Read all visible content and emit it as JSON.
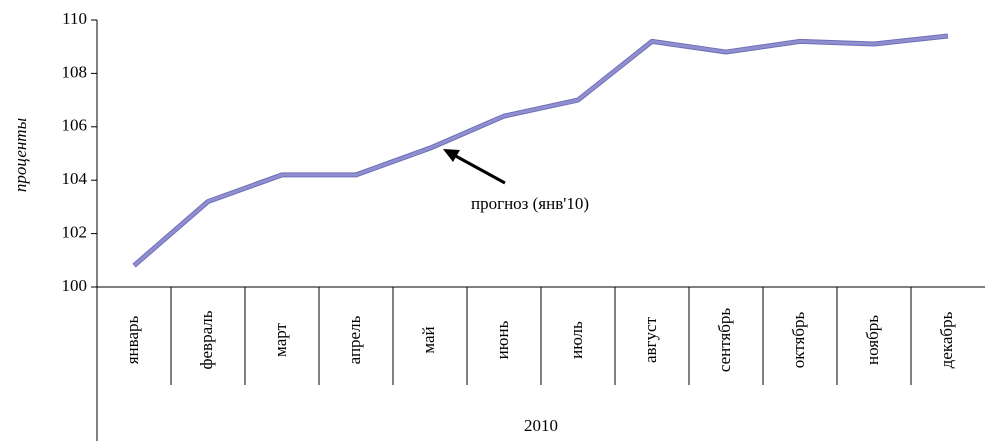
{
  "chart_data": {
    "type": "line",
    "y_label": "проценты",
    "x_group_label": "2010",
    "annotation": "прогноз (янв'10)",
    "categories": [
      "январь",
      "февраль",
      "март",
      "апрель",
      "май",
      "июнь",
      "июль",
      "август",
      "сентябрь",
      "октябрь",
      "ноябрь",
      "декабрь"
    ],
    "values": [
      100.8,
      103.2,
      104.2,
      104.2,
      105.2,
      106.4,
      107.0,
      109.2,
      108.8,
      109.2,
      109.1,
      109.4
    ],
    "color": "#8f8fcf",
    "ylim": [
      100,
      110
    ],
    "yticks": [
      100,
      102,
      104,
      106,
      108,
      110
    ],
    "grid": false
  }
}
